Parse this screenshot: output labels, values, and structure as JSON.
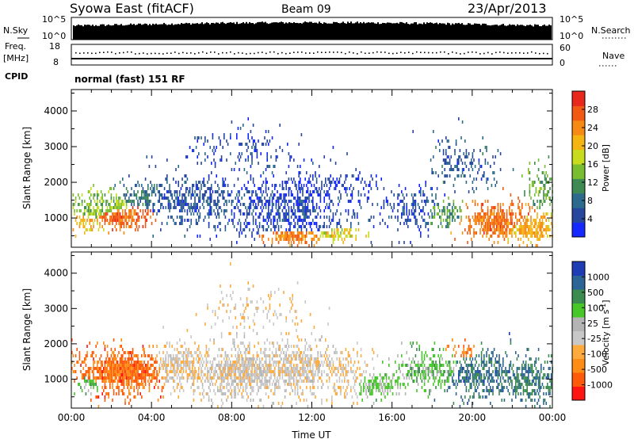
{
  "header": {
    "station": "Syowa East (fitACF)",
    "beam": "Beam 09",
    "date": "23/Apr/2013"
  },
  "noise_panel": {
    "left_label": "N.Sky",
    "right_label": "N.Search",
    "left_ticks": [
      "10^5",
      "10^0"
    ],
    "right_ticks": [
      "10^5",
      "10^0"
    ]
  },
  "freq_panel": {
    "left_label_1": "Freq.",
    "left_label_2": "[MHz]",
    "right_label": "Nave",
    "left_ticks": [
      "18",
      "8"
    ],
    "right_ticks": [
      "60",
      "0"
    ],
    "cpid_label": "CPID",
    "mode_text": "normal (fast) 151 RF"
  },
  "chart_data": [
    {
      "type": "heatmap",
      "title": "",
      "quantity": "Power",
      "xlabel": "",
      "ylabel": "Slant Range [km]",
      "colorbar_label": "Power [dB]",
      "xlim": [
        0,
        24
      ],
      "ylim": [
        180,
        4600
      ],
      "y_ticks": [
        1000,
        2000,
        3000,
        4000
      ],
      "colorbar_ticks": [
        "4",
        "8",
        "12",
        "16",
        "20",
        "24",
        "28"
      ],
      "colorbar_colors": [
        "#1428ff",
        "#27479e",
        "#2d6b8e",
        "#3e8a52",
        "#78be30",
        "#c8dc1e",
        "#f4b412",
        "#f78a14",
        "#f25a14",
        "#e8281c"
      ],
      "blobs": [
        {
          "t": 2.6,
          "r": 980,
          "dt": 1.3,
          "dr": 260,
          "v": 0.82,
          "p": 0.85
        },
        {
          "t": 1.6,
          "r": 1250,
          "dt": 1.6,
          "dr": 380,
          "v": 0.45,
          "p": 0.55
        },
        {
          "t": 0.8,
          "r": 820,
          "dt": 0.8,
          "dr": 200,
          "v": 0.66,
          "p": 0.6
        },
        {
          "t": 3.5,
          "r": 1550,
          "dt": 1.3,
          "dr": 350,
          "v": 0.28,
          "p": 0.45
        },
        {
          "t": 6.0,
          "r": 1450,
          "dt": 2.6,
          "dr": 550,
          "v": 0.18,
          "p": 0.45
        },
        {
          "t": 10.5,
          "r": 1200,
          "dt": 3.0,
          "dr": 750,
          "v": 0.13,
          "p": 0.45
        },
        {
          "t": 11.0,
          "r": 430,
          "dt": 1.3,
          "dr": 180,
          "v": 0.78,
          "p": 0.75
        },
        {
          "t": 13.3,
          "r": 500,
          "dt": 1.1,
          "dr": 160,
          "v": 0.6,
          "p": 0.55
        },
        {
          "t": 12.0,
          "r": 1750,
          "dt": 2.6,
          "dr": 420,
          "v": 0.1,
          "p": 0.35
        },
        {
          "t": 17.0,
          "r": 1200,
          "dt": 1.3,
          "dr": 550,
          "v": 0.14,
          "p": 0.35
        },
        {
          "t": 18.6,
          "r": 1050,
          "dt": 1.0,
          "dr": 320,
          "v": 0.35,
          "p": 0.45
        },
        {
          "t": 21.2,
          "r": 850,
          "dt": 1.5,
          "dr": 420,
          "v": 0.8,
          "p": 0.75
        },
        {
          "t": 22.8,
          "r": 650,
          "dt": 1.3,
          "dr": 350,
          "v": 0.68,
          "p": 0.65
        },
        {
          "t": 8.5,
          "r": 2800,
          "dt": 2.2,
          "dr": 500,
          "v": 0.12,
          "p": 0.2
        },
        {
          "t": 19.5,
          "r": 2500,
          "dt": 1.2,
          "dr": 600,
          "v": 0.2,
          "p": 0.3
        },
        {
          "t": 23.5,
          "r": 1800,
          "dt": 0.6,
          "dr": 500,
          "v": 0.4,
          "p": 0.4
        }
      ]
    },
    {
      "type": "heatmap",
      "title": "",
      "quantity": "Velocity",
      "xlabel": "Time UT",
      "ylabel": "Slant Range [km]",
      "colorbar_label": "Velocity [m s^-1]",
      "xlim": [
        0,
        24
      ],
      "ylim": [
        180,
        4600
      ],
      "x_ticks": [
        "00:00",
        "04:00",
        "08:00",
        "12:00",
        "16:00",
        "20:00",
        "00:00"
      ],
      "y_ticks": [
        1000,
        2000,
        3000,
        4000
      ],
      "colorbar_ticks": [
        "-1000",
        "-500",
        "-100",
        "-25",
        "25",
        "100",
        "500",
        "1000"
      ],
      "colorbar_colors": [
        "#ff1414",
        "#ff5a0a",
        "#ff8c14",
        "#ffaa3c",
        "#c8c8c8",
        "#b4b4b4",
        "#46c828",
        "#3c8c50",
        "#2d6496",
        "#1e3cb4"
      ],
      "blobs": [
        {
          "t": 2.6,
          "r": 1150,
          "dt": 2.0,
          "dr": 520,
          "v": 0.18,
          "p": 0.85
        },
        {
          "t": 5.5,
          "r": 1250,
          "dt": 1.8,
          "dr": 520,
          "v": 0.42,
          "p": 0.55
        },
        {
          "t": 8.5,
          "r": 1150,
          "dt": 2.2,
          "dr": 620,
          "v": 0.45,
          "p": 0.7
        },
        {
          "t": 11.0,
          "r": 1250,
          "dt": 2.2,
          "dr": 620,
          "v": 0.44,
          "p": 0.65
        },
        {
          "t": 13.5,
          "r": 1100,
          "dt": 1.2,
          "dr": 520,
          "v": 0.4,
          "p": 0.4
        },
        {
          "t": 15.3,
          "r": 800,
          "dt": 1.0,
          "dr": 300,
          "v": 0.62,
          "p": 0.55
        },
        {
          "t": 18.0,
          "r": 1200,
          "dt": 1.6,
          "dr": 450,
          "v": 0.65,
          "p": 0.45
        },
        {
          "t": 20.5,
          "r": 1050,
          "dt": 1.8,
          "dr": 520,
          "v": 0.82,
          "p": 0.55
        },
        {
          "t": 22.8,
          "r": 900,
          "dt": 1.4,
          "dr": 550,
          "v": 0.8,
          "p": 0.55
        },
        {
          "t": 19.5,
          "r": 1750,
          "dt": 0.7,
          "dr": 200,
          "v": 0.22,
          "p": 0.35
        },
        {
          "t": 1.0,
          "r": 850,
          "dt": 0.8,
          "dr": 300,
          "v": 0.66,
          "p": 0.45
        },
        {
          "t": 9.0,
          "r": 2900,
          "dt": 2.0,
          "dr": 500,
          "v": 0.4,
          "p": 0.15
        }
      ]
    }
  ]
}
